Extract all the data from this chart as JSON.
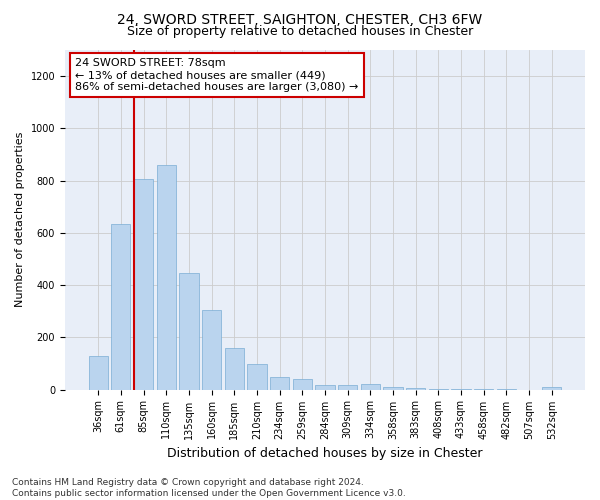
{
  "title": "24, SWORD STREET, SAIGHTON, CHESTER, CH3 6FW",
  "subtitle": "Size of property relative to detached houses in Chester",
  "xlabel": "Distribution of detached houses by size in Chester",
  "ylabel": "Number of detached properties",
  "categories": [
    "36sqm",
    "61sqm",
    "85sqm",
    "110sqm",
    "135sqm",
    "160sqm",
    "185sqm",
    "210sqm",
    "234sqm",
    "259sqm",
    "284sqm",
    "309sqm",
    "334sqm",
    "358sqm",
    "383sqm",
    "408sqm",
    "433sqm",
    "458sqm",
    "482sqm",
    "507sqm",
    "532sqm"
  ],
  "values": [
    130,
    635,
    805,
    858,
    445,
    305,
    158,
    97,
    50,
    42,
    18,
    18,
    20,
    10,
    5,
    3,
    2,
    2,
    1,
    0,
    10
  ],
  "bar_color": "#bad4ee",
  "bar_edge_color": "#7aadd4",
  "vline_color": "#cc0000",
  "vline_x_index": 2,
  "annotation_text": "24 SWORD STREET: 78sqm\n← 13% of detached houses are smaller (449)\n86% of semi-detached houses are larger (3,080) →",
  "annotation_box_facecolor": "#ffffff",
  "annotation_box_edgecolor": "#cc0000",
  "ylim": [
    0,
    1300
  ],
  "yticks": [
    0,
    200,
    400,
    600,
    800,
    1000,
    1200
  ],
  "grid_color": "#cccccc",
  "bg_color": "#e8eef8",
  "footnote": "Contains HM Land Registry data © Crown copyright and database right 2024.\nContains public sector information licensed under the Open Government Licence v3.0.",
  "title_fontsize": 10,
  "subtitle_fontsize": 9,
  "xlabel_fontsize": 9,
  "ylabel_fontsize": 8,
  "tick_fontsize": 7,
  "annotation_fontsize": 8,
  "footnote_fontsize": 6.5
}
